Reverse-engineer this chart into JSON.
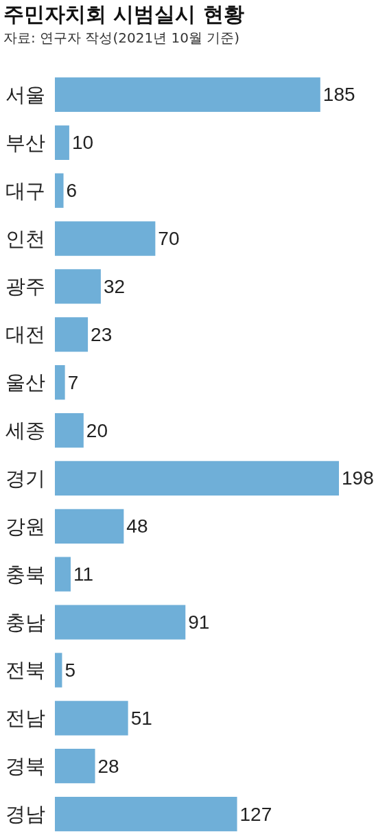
{
  "chart_data": {
    "type": "bar",
    "orientation": "horizontal",
    "title": "주민자치회 시범실시 현황",
    "subtitle": "자료: 연구자 작성(2021년 10월 기준)",
    "categories": [
      "서울",
      "부산",
      "대구",
      "인천",
      "광주",
      "대전",
      "울산",
      "세종",
      "경기",
      "강원",
      "충북",
      "충남",
      "전북",
      "전남",
      "경북",
      "경남"
    ],
    "values": [
      185,
      10,
      6,
      70,
      32,
      23,
      7,
      20,
      198,
      48,
      11,
      91,
      5,
      51,
      28,
      127
    ],
    "color": "#6fafd8",
    "data_labels": true
  }
}
